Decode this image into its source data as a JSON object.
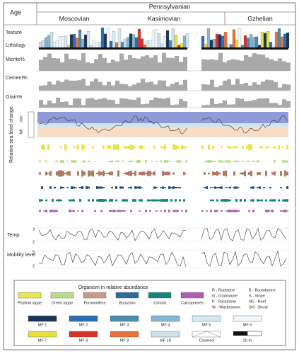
{
  "header": {
    "age_label": "Age",
    "period": "Pennsylvanian",
    "stages": [
      "Moscovian",
      "Kasimovian",
      "Gzhelian"
    ]
  },
  "tracks": {
    "texture": "Texture",
    "lithology": "Lithology",
    "micrite": "Micrite%",
    "cement": "Cement%",
    "grain": "Grain%",
    "sea_level": "Relative sea level change",
    "rise": "rise",
    "fall": "fall",
    "temperature": "Temp.",
    "mobility": "Mobility level"
  },
  "scales": {
    "temperature": [
      "3",
      "2"
    ],
    "mobility": [
      "5",
      "2"
    ]
  },
  "legend": {
    "title": "Organism in relative abundance",
    "organisms": [
      "Phylloid algae",
      "Green algae",
      "Foraminifera",
      "Bryozoan",
      "Crinoid",
      "Calcispheres"
    ],
    "lithology_codes": [
      "R - Rudstone",
      "G - Grainstone",
      "P - Packstone",
      "W - Wackestone",
      "B - Boundstone",
      "S - Slope",
      "RE - Reef",
      "SH - Shoal"
    ],
    "microfacies": [
      "MF 1",
      "MF 2",
      "MF 3",
      "MF 4",
      "MF 5",
      "MF 6",
      "MF 7",
      "MF 8",
      "MF 9",
      "MF 10"
    ],
    "covered": "Covered",
    "scale": "20 m"
  }
}
